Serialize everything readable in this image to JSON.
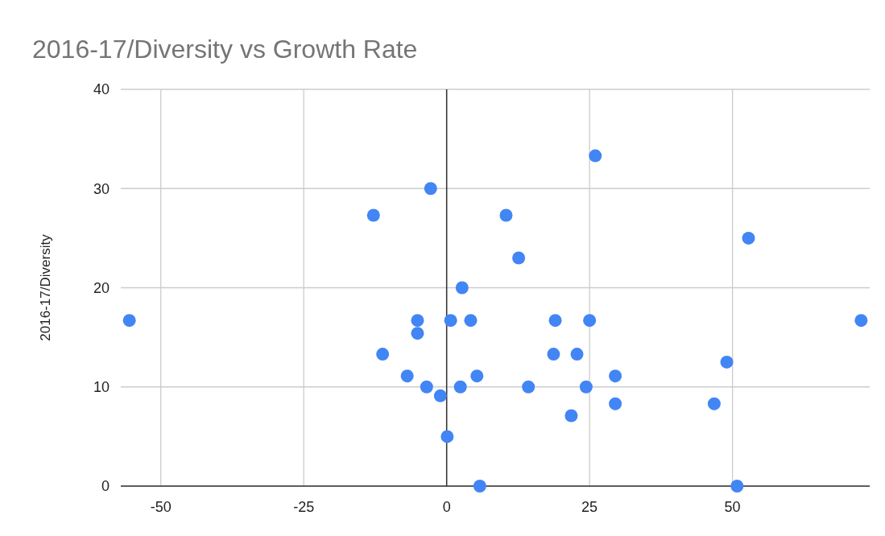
{
  "chart_data": {
    "type": "scatter",
    "title": "2016-17/Diversity vs Growth Rate",
    "ylabel": "2016-17/Diversity",
    "x": [
      -55.5,
      -12.8,
      -2.8,
      -11.2,
      -5.1,
      -5.1,
      -6.9,
      -3.5,
      -1.1,
      0.1,
      0.7,
      2.7,
      2.4,
      4.2,
      5.3,
      5.8,
      10.4,
      12.6,
      14.3,
      19.0,
      18.7,
      22.8,
      21.8,
      24.4,
      25.0,
      26.0,
      29.5,
      29.5,
      46.8,
      49.0,
      50.8,
      52.8,
      72.5
    ],
    "series": [
      {
        "color": "#4285f4",
        "values": [
          16.7,
          27.3,
          30,
          13.3,
          16.7,
          15.4,
          11.1,
          10,
          9.1,
          5,
          16.7,
          20,
          10,
          16.7,
          11.1,
          0,
          27.3,
          23,
          10,
          16.7,
          13.3,
          13.3,
          7.1,
          10,
          16.7,
          33.3,
          11.1,
          8.3,
          8.3,
          12.5,
          0,
          25,
          16.7
        ]
      }
    ],
    "xlim": [
      -57,
      74
    ],
    "xticks": [
      -50,
      -25,
      0,
      25,
      50
    ],
    "ylim": [
      0,
      40
    ],
    "yticks": [
      0,
      10,
      20,
      30,
      40
    ],
    "grid": true,
    "marker": "circle"
  }
}
